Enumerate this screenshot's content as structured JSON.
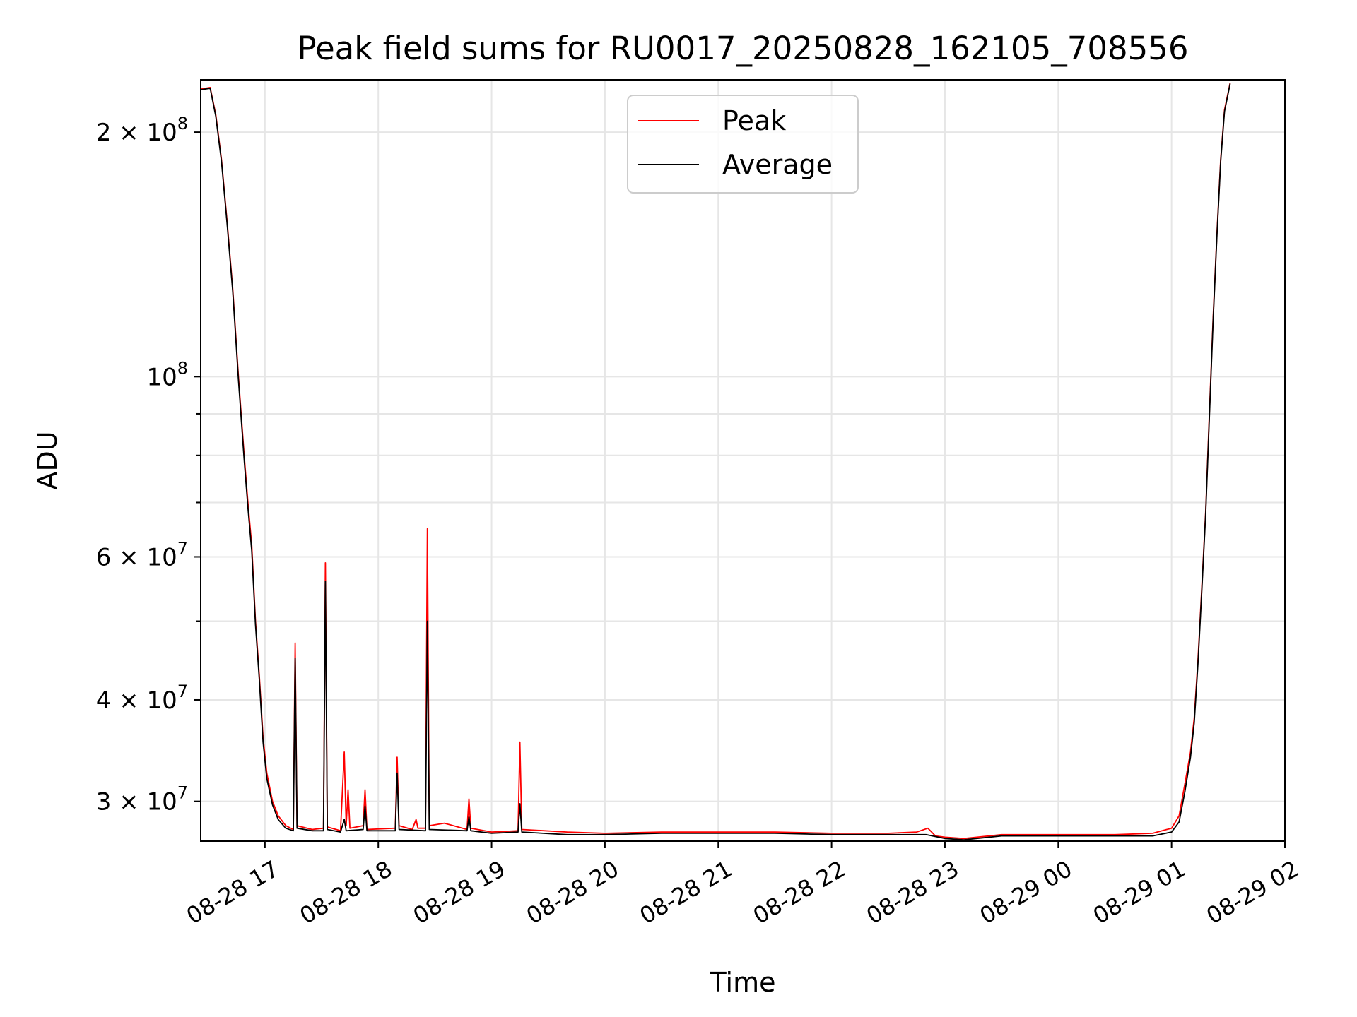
{
  "chart_data": {
    "type": "line",
    "title": "Peak field sums for RU0017_20250828_162105_708556",
    "xlabel": "Time",
    "ylabel": "ADU",
    "scale": {
      "x": "time",
      "y": "log"
    },
    "grid": true,
    "legend_position": "top-center",
    "xlim": [
      "2025-08-28 16:26",
      "2025-08-29 02:00"
    ],
    "ylim": [
      26800000,
      232000000
    ],
    "x_ticks": [
      {
        "t": "2025-08-28 17:00",
        "label": "08-28 17"
      },
      {
        "t": "2025-08-28 18:00",
        "label": "08-28 18"
      },
      {
        "t": "2025-08-28 19:00",
        "label": "08-28 19"
      },
      {
        "t": "2025-08-28 20:00",
        "label": "08-28 20"
      },
      {
        "t": "2025-08-28 21:00",
        "label": "08-28 21"
      },
      {
        "t": "2025-08-28 22:00",
        "label": "08-28 22"
      },
      {
        "t": "2025-08-28 23:00",
        "label": "08-28 23"
      },
      {
        "t": "2025-08-29 00:00",
        "label": "08-29 00"
      },
      {
        "t": "2025-08-29 01:00",
        "label": "08-29 01"
      },
      {
        "t": "2025-08-29 02:00",
        "label": "08-29 02"
      }
    ],
    "y_ticks_major": [
      {
        "value": 100000000,
        "mantissa": "",
        "exp": "8"
      },
      {
        "value": 200000000,
        "mantissa": "2",
        "exp": "8"
      }
    ],
    "y_ticks_minor": [
      {
        "value": 30000000,
        "mantissa": "3",
        "exp": "7"
      },
      {
        "value": 40000000,
        "mantissa": "4",
        "exp": "7"
      },
      {
        "value": 60000000,
        "mantissa": "6",
        "exp": "7"
      }
    ],
    "y_minor_unlabeled": [
      50000000,
      70000000,
      80000000,
      90000000
    ],
    "series": [
      {
        "name": "Peak",
        "color": "#ff0000",
        "points": [
          [
            "2025-08-28 16:26",
            226000000
          ],
          [
            "2025-08-28 16:31",
            227000000
          ],
          [
            "2025-08-28 16:34",
            210000000
          ],
          [
            "2025-08-28 16:37",
            185000000
          ],
          [
            "2025-08-28 16:40",
            155000000
          ],
          [
            "2025-08-28 16:43",
            128000000
          ],
          [
            "2025-08-28 16:46",
            100000000
          ],
          [
            "2025-08-28 16:49",
            80000000
          ],
          [
            "2025-08-28 16:51",
            70000000
          ],
          [
            "2025-08-28 16:53",
            62000000
          ],
          [
            "2025-08-28 16:55",
            50000000
          ],
          [
            "2025-08-28 16:57",
            43000000
          ],
          [
            "2025-08-28 16:59",
            36000000
          ],
          [
            "2025-08-28 17:01",
            32500000
          ],
          [
            "2025-08-28 17:04",
            30000000
          ],
          [
            "2025-08-28 17:07",
            28800000
          ],
          [
            "2025-08-28 17:11",
            28000000
          ],
          [
            "2025-08-28 17:15",
            27700000
          ],
          [
            "2025-08-28 17:16",
            47000000
          ],
          [
            "2025-08-28 17:17",
            28000000
          ],
          [
            "2025-08-28 17:25",
            27700000
          ],
          [
            "2025-08-28 17:31",
            27800000
          ],
          [
            "2025-08-28 17:32",
            59000000
          ],
          [
            "2025-08-28 17:33",
            27900000
          ],
          [
            "2025-08-28 17:40",
            27600000
          ],
          [
            "2025-08-28 17:42",
            34500000
          ],
          [
            "2025-08-28 17:43",
            28000000
          ],
          [
            "2025-08-28 17:44",
            31000000
          ],
          [
            "2025-08-28 17:45",
            27800000
          ],
          [
            "2025-08-28 17:52",
            28000000
          ],
          [
            "2025-08-28 17:53",
            31000000
          ],
          [
            "2025-08-28 17:54",
            27700000
          ],
          [
            "2025-08-28 18:09",
            27800000
          ],
          [
            "2025-08-28 18:10",
            34000000
          ],
          [
            "2025-08-28 18:11",
            28000000
          ],
          [
            "2025-08-28 18:18",
            27700000
          ],
          [
            "2025-08-28 18:20",
            28500000
          ],
          [
            "2025-08-28 18:21",
            27800000
          ],
          [
            "2025-08-28 18:25",
            27800000
          ],
          [
            "2025-08-28 18:26",
            65000000
          ],
          [
            "2025-08-28 18:27",
            28000000
          ],
          [
            "2025-08-28 18:35",
            28200000
          ],
          [
            "2025-08-28 18:47",
            27700000
          ],
          [
            "2025-08-28 18:48",
            30200000
          ],
          [
            "2025-08-28 18:49",
            27800000
          ],
          [
            "2025-08-28 19:00",
            27500000
          ],
          [
            "2025-08-28 19:14",
            27600000
          ],
          [
            "2025-08-28 19:15",
            35500000
          ],
          [
            "2025-08-28 19:16",
            27700000
          ],
          [
            "2025-08-28 19:40",
            27500000
          ],
          [
            "2025-08-28 20:00",
            27400000
          ],
          [
            "2025-08-28 20:30",
            27500000
          ],
          [
            "2025-08-28 21:00",
            27500000
          ],
          [
            "2025-08-28 21:30",
            27500000
          ],
          [
            "2025-08-28 22:00",
            27400000
          ],
          [
            "2025-08-28 22:30",
            27400000
          ],
          [
            "2025-08-28 22:45",
            27500000
          ],
          [
            "2025-08-28 22:51",
            27800000
          ],
          [
            "2025-08-28 22:55",
            27200000
          ],
          [
            "2025-08-28 23:00",
            27100000
          ],
          [
            "2025-08-28 23:10",
            27000000
          ],
          [
            "2025-08-28 23:30",
            27300000
          ],
          [
            "2025-08-29 00:00",
            27300000
          ],
          [
            "2025-08-29 00:30",
            27300000
          ],
          [
            "2025-08-29 00:50",
            27400000
          ],
          [
            "2025-08-29 01:00",
            27800000
          ],
          [
            "2025-08-29 01:04",
            28800000
          ],
          [
            "2025-08-29 01:07",
            31500000
          ],
          [
            "2025-08-29 01:10",
            34500000
          ],
          [
            "2025-08-29 01:12",
            38000000
          ],
          [
            "2025-08-29 01:14",
            45000000
          ],
          [
            "2025-08-29 01:16",
            55000000
          ],
          [
            "2025-08-29 01:18",
            68000000
          ],
          [
            "2025-08-29 01:20",
            90000000
          ],
          [
            "2025-08-29 01:22",
            118000000
          ],
          [
            "2025-08-29 01:24",
            150000000
          ],
          [
            "2025-08-29 01:26",
            185000000
          ],
          [
            "2025-08-29 01:28",
            213000000
          ],
          [
            "2025-08-29 01:31",
            230000000
          ]
        ]
      },
      {
        "name": "Average",
        "color": "#000000",
        "points": [
          [
            "2025-08-28 16:26",
            225500000
          ],
          [
            "2025-08-28 16:31",
            226500000
          ],
          [
            "2025-08-28 16:34",
            209000000
          ],
          [
            "2025-08-28 16:37",
            184000000
          ],
          [
            "2025-08-28 16:40",
            154000000
          ],
          [
            "2025-08-28 16:43",
            127000000
          ],
          [
            "2025-08-28 16:46",
            99000000
          ],
          [
            "2025-08-28 16:49",
            79000000
          ],
          [
            "2025-08-28 16:51",
            69000000
          ],
          [
            "2025-08-28 16:53",
            61000000
          ],
          [
            "2025-08-28 16:55",
            49500000
          ],
          [
            "2025-08-28 16:57",
            42500000
          ],
          [
            "2025-08-28 16:59",
            35500000
          ],
          [
            "2025-08-28 17:01",
            32000000
          ],
          [
            "2025-08-28 17:04",
            29700000
          ],
          [
            "2025-08-28 17:07",
            28500000
          ],
          [
            "2025-08-28 17:11",
            27800000
          ],
          [
            "2025-08-28 17:15",
            27600000
          ],
          [
            "2025-08-28 17:16",
            45000000
          ],
          [
            "2025-08-28 17:17",
            27800000
          ],
          [
            "2025-08-28 17:25",
            27600000
          ],
          [
            "2025-08-28 17:31",
            27600000
          ],
          [
            "2025-08-28 17:32",
            56000000
          ],
          [
            "2025-08-28 17:33",
            27700000
          ],
          [
            "2025-08-28 17:40",
            27500000
          ],
          [
            "2025-08-28 17:42",
            28500000
          ],
          [
            "2025-08-28 17:43",
            27600000
          ],
          [
            "2025-08-28 17:52",
            27700000
          ],
          [
            "2025-08-28 17:53",
            29600000
          ],
          [
            "2025-08-28 17:54",
            27600000
          ],
          [
            "2025-08-28 18:09",
            27600000
          ],
          [
            "2025-08-28 18:10",
            32500000
          ],
          [
            "2025-08-28 18:11",
            27700000
          ],
          [
            "2025-08-28 18:25",
            27600000
          ],
          [
            "2025-08-28 18:26",
            50000000
          ],
          [
            "2025-08-28 18:27",
            27700000
          ],
          [
            "2025-08-28 18:47",
            27600000
          ],
          [
            "2025-08-28 18:48",
            28700000
          ],
          [
            "2025-08-28 18:49",
            27600000
          ],
          [
            "2025-08-28 19:00",
            27400000
          ],
          [
            "2025-08-28 19:14",
            27500000
          ],
          [
            "2025-08-28 19:15",
            29800000
          ],
          [
            "2025-08-28 19:16",
            27500000
          ],
          [
            "2025-08-28 19:40",
            27300000
          ],
          [
            "2025-08-28 20:00",
            27300000
          ],
          [
            "2025-08-28 20:30",
            27400000
          ],
          [
            "2025-08-28 21:00",
            27400000
          ],
          [
            "2025-08-28 21:30",
            27400000
          ],
          [
            "2025-08-28 22:00",
            27300000
          ],
          [
            "2025-08-28 22:30",
            27300000
          ],
          [
            "2025-08-28 22:50",
            27300000
          ],
          [
            "2025-08-28 23:00",
            27000000
          ],
          [
            "2025-08-28 23:10",
            26900000
          ],
          [
            "2025-08-28 23:30",
            27200000
          ],
          [
            "2025-08-29 00:00",
            27200000
          ],
          [
            "2025-08-29 00:30",
            27200000
          ],
          [
            "2025-08-29 00:50",
            27200000
          ],
          [
            "2025-08-29 01:00",
            27500000
          ],
          [
            "2025-08-29 01:04",
            28300000
          ],
          [
            "2025-08-29 01:07",
            30800000
          ],
          [
            "2025-08-29 01:10",
            34000000
          ],
          [
            "2025-08-29 01:12",
            37500000
          ],
          [
            "2025-08-29 01:14",
            44500000
          ],
          [
            "2025-08-29 01:16",
            54500000
          ],
          [
            "2025-08-29 01:18",
            67500000
          ],
          [
            "2025-08-29 01:20",
            89000000
          ],
          [
            "2025-08-29 01:22",
            117000000
          ],
          [
            "2025-08-29 01:24",
            149000000
          ],
          [
            "2025-08-29 01:26",
            184000000
          ],
          [
            "2025-08-29 01:28",
            212000000
          ],
          [
            "2025-08-29 01:31",
            229500000
          ]
        ]
      }
    ]
  }
}
